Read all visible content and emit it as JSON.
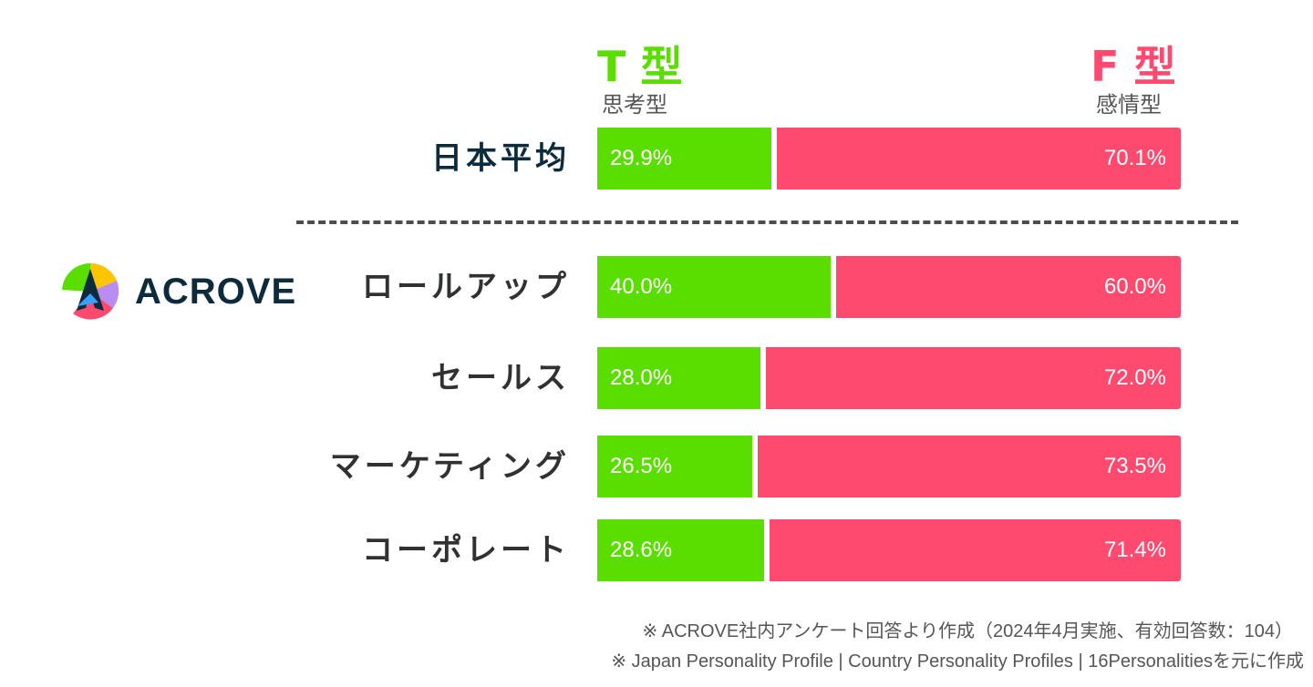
{
  "header": {
    "t_title": "T 型",
    "t_subtitle": "思考型",
    "f_title": "F 型",
    "f_subtitle": "感情型"
  },
  "logo": {
    "text": "ACROVE"
  },
  "chart_data": {
    "type": "bar",
    "orientation": "horizontal",
    "stacked": true,
    "normalized": true,
    "categories": [
      "日本平均",
      "ロールアップ",
      "セールス",
      "マーケティング",
      "コーポレート"
    ],
    "series": [
      {
        "name": "T 型",
        "values": [
          29.9,
          40.0,
          28.0,
          26.5,
          28.6
        ],
        "labels": [
          "29.9%",
          "40.0%",
          "28.0%",
          "26.5%",
          "28.6%"
        ],
        "color": "#5ade00"
      },
      {
        "name": "F 型",
        "values": [
          70.1,
          60.0,
          72.0,
          73.5,
          71.4
        ],
        "labels": [
          "70.1%",
          "60.0%",
          "72.0%",
          "73.5%",
          "71.4%"
        ],
        "color": "#ff4a70"
      }
    ],
    "xlim": [
      0,
      100
    ],
    "grid": false,
    "legend": "top"
  },
  "notes": [
    "※ ACROVE社内アンケート回答より作成（2024年4月実施、有効回答数：104）",
    "※ Japan Personality Profile | Country Personality Profiles | 16Personalitiesを元に作成"
  ],
  "colors": {
    "t": "#5ade00",
    "f": "#ff4a70",
    "label": "#2f3133",
    "avg_label": "#0c2b3d",
    "divider": "#4d4d4d"
  }
}
